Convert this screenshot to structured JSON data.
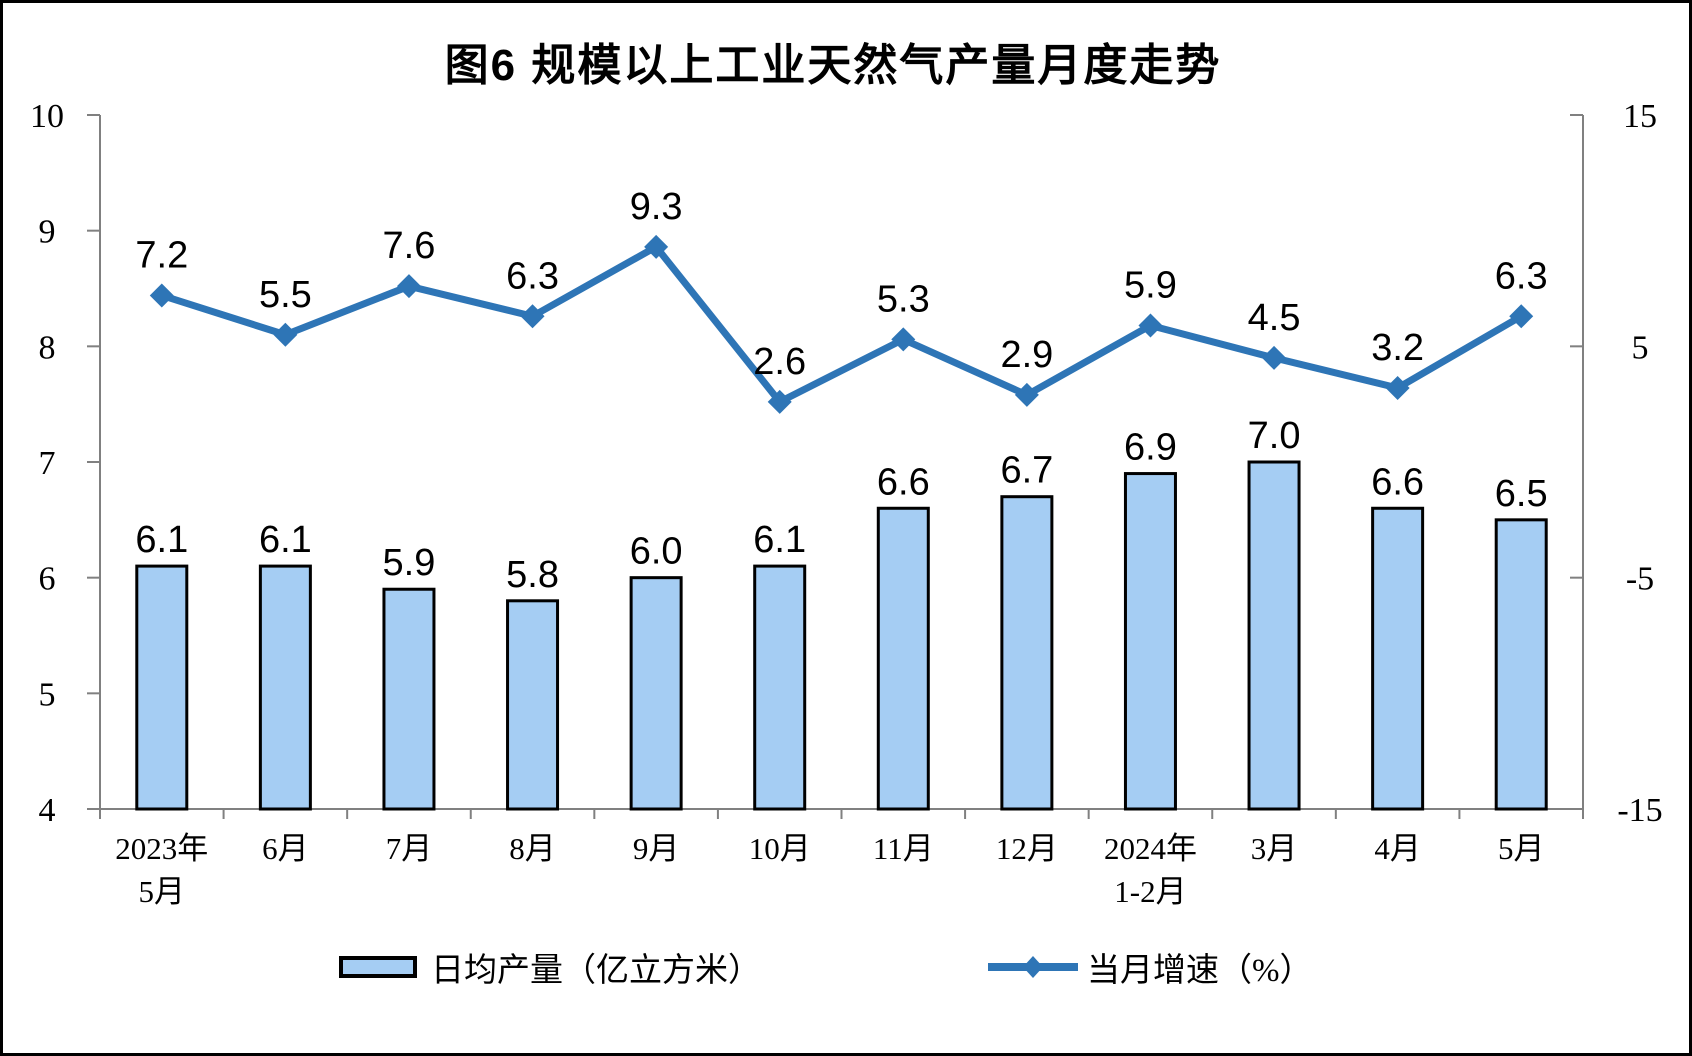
{
  "title": "图6 规模以上工业天然气产量月度走势",
  "legend": {
    "bar_label": "日均产量（亿立方米）",
    "line_label": "当月增速（%）"
  },
  "colors": {
    "background": "#FFFFFF",
    "bar_fill": "#A5CDF3",
    "bar_border": "#000000",
    "line": "#2E75B6",
    "axis": "#808080",
    "label": "#000000"
  },
  "chart_data": {
    "type": "bar",
    "subtype": "combo-bar-line-dual-axis",
    "title": "图6 规模以上工业天然气产量月度走势",
    "categories": [
      [
        "2023年",
        "5月"
      ],
      [
        "6月"
      ],
      [
        "7月"
      ],
      [
        "8月"
      ],
      [
        "9月"
      ],
      [
        "10月"
      ],
      [
        "11月"
      ],
      [
        "12月"
      ],
      [
        "2024年",
        "1-2月"
      ],
      [
        "3月"
      ],
      [
        "4月"
      ],
      [
        "5月"
      ]
    ],
    "series": [
      {
        "name": "日均产量（亿立方米）",
        "type": "bar",
        "axis": "left",
        "values": [
          6.1,
          6.1,
          5.9,
          5.8,
          6.0,
          6.1,
          6.6,
          6.7,
          6.9,
          7.0,
          6.6,
          6.5
        ]
      },
      {
        "name": "当月增速（%）",
        "type": "line",
        "axis": "right",
        "values": [
          7.2,
          5.5,
          7.6,
          6.3,
          9.3,
          2.6,
          5.3,
          2.9,
          5.9,
          4.5,
          3.2,
          6.3
        ]
      }
    ],
    "left_axis": {
      "min": 4,
      "max": 10,
      "ticks": [
        4,
        5,
        6,
        7,
        8,
        9,
        10
      ]
    },
    "right_axis": {
      "min": -15,
      "max": 15,
      "ticks": [
        -15,
        -5,
        5,
        15
      ]
    },
    "grid": false,
    "data_labels": true,
    "legend_position": "bottom"
  }
}
